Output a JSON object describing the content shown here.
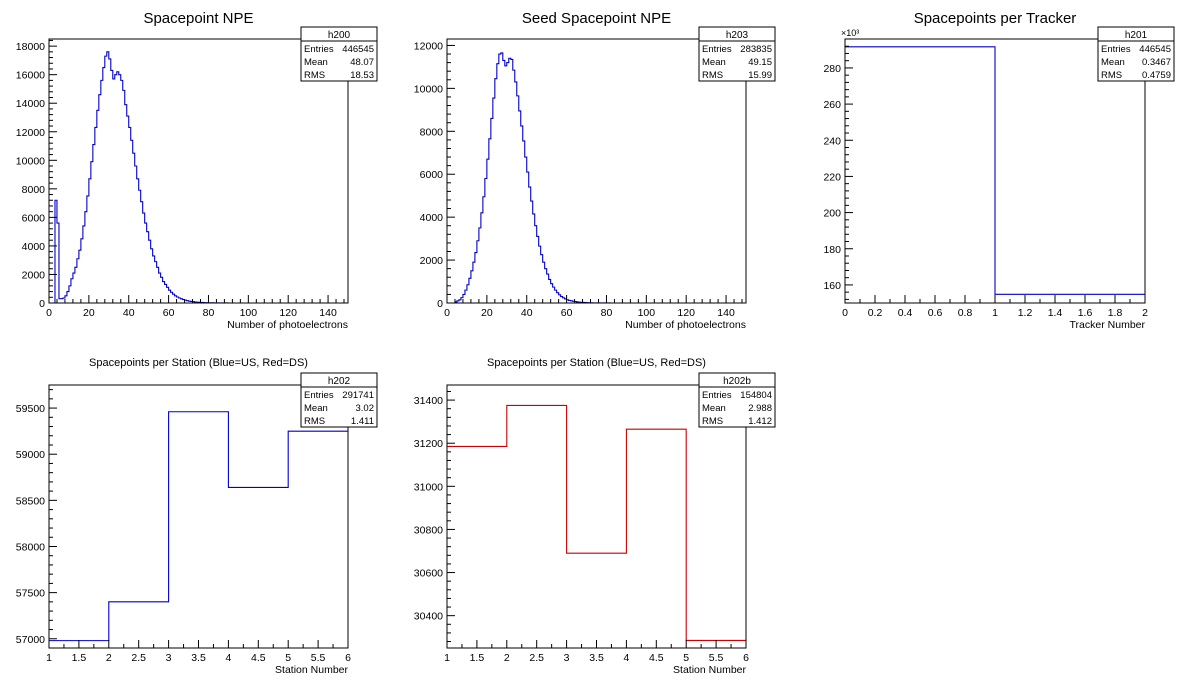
{
  "colors": {
    "blue": "#0000cc",
    "red": "#cc0000",
    "axis": "#000000"
  },
  "chart_data": [
    {
      "id": "h200",
      "type": "histogram",
      "title": "Spacepoint NPE",
      "title_style": "large",
      "xlabel": "Number of photoelectrons",
      "ylabel": "",
      "xlim": [
        0,
        150
      ],
      "ylim": [
        0,
        18500
      ],
      "x_ticks": [
        0,
        20,
        40,
        60,
        80,
        100,
        120,
        140
      ],
      "y_ticks": [
        0,
        2000,
        4000,
        6000,
        8000,
        10000,
        12000,
        14000,
        16000,
        18000
      ],
      "y_multiplier": "",
      "x_minor_per_major": 4,
      "y_minor_per_major": 4,
      "color": "blue",
      "stats": {
        "name": "h200",
        "rows": [
          {
            "label": "Entries",
            "value": "446545"
          },
          {
            "label": "Mean",
            "value": "48.07"
          },
          {
            "label": "RMS",
            "value": "18.53"
          }
        ]
      },
      "bin_width": 1,
      "x_start": 0,
      "values": [
        0,
        0,
        0,
        7200,
        5600,
        300,
        300,
        350,
        500,
        800,
        1200,
        1700,
        2100,
        2500,
        3100,
        3700,
        4500,
        5400,
        6400,
        7500,
        8700,
        9900,
        11100,
        12300,
        13500,
        14600,
        15600,
        16500,
        17300,
        17600,
        17100,
        16300,
        15700,
        16000,
        16200,
        16000,
        15600,
        14900,
        13900,
        13100,
        12300,
        11400,
        10500,
        9600,
        8700,
        7900,
        7100,
        6300,
        5600,
        5000,
        4400,
        3800,
        3300,
        2900,
        2500,
        2100,
        1800,
        1500,
        1300,
        1100,
        900,
        750,
        620,
        500,
        420,
        350,
        290,
        240,
        200,
        160,
        130,
        110,
        90,
        70,
        60,
        50,
        40,
        30,
        25,
        20,
        15,
        12,
        10,
        8,
        6,
        5,
        4,
        3,
        2,
        2,
        1,
        1,
        1,
        1,
        0,
        0,
        0,
        0,
        0,
        0,
        0,
        0,
        0,
        0,
        0,
        0,
        0,
        0,
        0,
        0,
        0,
        0,
        0,
        0,
        0,
        0,
        0,
        0,
        0,
        0,
        0,
        0,
        0,
        0,
        0,
        0,
        0,
        0,
        0,
        0,
        0,
        0,
        0,
        0,
        0,
        0,
        0,
        0,
        0,
        0,
        0,
        0,
        0,
        0,
        0,
        0,
        0,
        0,
        0,
        0
      ]
    },
    {
      "id": "h203",
      "type": "histogram",
      "title": "Seed Spacepoint NPE",
      "title_style": "large",
      "xlabel": "Number of photoelectrons",
      "ylabel": "",
      "xlim": [
        0,
        150
      ],
      "ylim": [
        0,
        12300
      ],
      "x_ticks": [
        0,
        20,
        40,
        60,
        80,
        100,
        120,
        140
      ],
      "y_ticks": [
        0,
        2000,
        4000,
        6000,
        8000,
        10000,
        12000
      ],
      "y_multiplier": "",
      "x_minor_per_major": 4,
      "y_minor_per_major": 4,
      "color": "blue",
      "stats": {
        "name": "h203",
        "rows": [
          {
            "label": "Entries",
            "value": "283835"
          },
          {
            "label": "Mean",
            "value": "49.15"
          },
          {
            "label": "RMS",
            "value": "15.99"
          }
        ]
      },
      "bin_width": 1,
      "x_start": 0,
      "values": [
        0,
        0,
        0,
        0,
        50,
        100,
        150,
        250,
        400,
        600,
        850,
        1150,
        1500,
        1900,
        2350,
        2900,
        3500,
        4200,
        4950,
        5800,
        6700,
        7650,
        8600,
        9550,
        10450,
        11150,
        11600,
        11650,
        11300,
        11050,
        11200,
        11400,
        11350,
        10850,
        10300,
        9650,
        8950,
        8250,
        7550,
        6800,
        6100,
        5400,
        4750,
        4150,
        3600,
        3100,
        2650,
        2250,
        1900,
        1600,
        1350,
        1100,
        900,
        740,
        600,
        480,
        380,
        300,
        240,
        190,
        150,
        120,
        100,
        80,
        65,
        50,
        40,
        30,
        24,
        18,
        14,
        10,
        8,
        6,
        5,
        4,
        3,
        2,
        2,
        1,
        1,
        1,
        0,
        0,
        0,
        0,
        0,
        0,
        0,
        0,
        0,
        0,
        0,
        0,
        0,
        0,
        0,
        0,
        0,
        0,
        0,
        0,
        0,
        0,
        0,
        0,
        0,
        0,
        0,
        0,
        0,
        0,
        0,
        0,
        0,
        0,
        0,
        0,
        0,
        0,
        0,
        0,
        0,
        0,
        0,
        0,
        0,
        0,
        0,
        0,
        0,
        0,
        0,
        0,
        0,
        0,
        0,
        0,
        0,
        0,
        0,
        0,
        0,
        0,
        0,
        0,
        0,
        0
      ]
    },
    {
      "id": "h201",
      "type": "histogram",
      "title": "Spacepoints per Tracker",
      "title_style": "large",
      "xlabel": "Tracker Number",
      "ylabel": "",
      "xlim": [
        0,
        2
      ],
      "ylim": [
        150,
        296
      ],
      "x_ticks": [
        0,
        0.2,
        0.4,
        0.6,
        0.8,
        1,
        1.2,
        1.4,
        1.6,
        1.8,
        2
      ],
      "y_ticks": [
        160,
        180,
        200,
        220,
        240,
        260,
        280
      ],
      "y_multiplier": "×10³",
      "x_minor_per_major": 1,
      "y_minor_per_major": 4,
      "color": "blue",
      "stats": {
        "name": "h201",
        "rows": [
          {
            "label": "Entries",
            "value": "446545"
          },
          {
            "label": "Mean",
            "value": "0.3467"
          },
          {
            "label": "RMS",
            "value": "0.4759"
          }
        ]
      },
      "bin_width": 1,
      "x_start": 0,
      "values": [
        291.7,
        154.8
      ]
    },
    {
      "id": "h202",
      "type": "histogram",
      "title": "Spacepoints per Station (Blue=US, Red=DS)",
      "title_style": "small",
      "xlabel": "Station Number",
      "ylabel": "",
      "xlim": [
        1,
        6
      ],
      "ylim": [
        56900,
        59750
      ],
      "x_ticks": [
        1,
        1.5,
        2,
        2.5,
        3,
        3.5,
        4,
        4.5,
        5,
        5.5,
        6
      ],
      "y_ticks": [
        57000,
        57500,
        58000,
        58500,
        59000,
        59500
      ],
      "y_multiplier": "",
      "x_minor_per_major": 1,
      "y_minor_per_major": 4,
      "color": "blue",
      "stats": {
        "name": "h202",
        "rows": [
          {
            "label": "Entries",
            "value": "291741"
          },
          {
            "label": "Mean",
            "value": "3.02"
          },
          {
            "label": "RMS",
            "value": "1.411"
          }
        ]
      },
      "bin_width": 1,
      "x_start": 1,
      "values": [
        56980,
        57400,
        59460,
        58640,
        59250
      ]
    },
    {
      "id": "h202b",
      "type": "histogram",
      "title": "Spacepoints per Station (Blue=US, Red=DS)",
      "title_style": "small",
      "xlabel": "Station Number",
      "ylabel": "",
      "xlim": [
        1,
        6
      ],
      "ylim": [
        30250,
        31470
      ],
      "x_ticks": [
        1,
        1.5,
        2,
        2.5,
        3,
        3.5,
        4,
        4.5,
        5,
        5.5,
        6
      ],
      "y_ticks": [
        30400,
        30600,
        30800,
        31000,
        31200,
        31400
      ],
      "y_multiplier": "",
      "x_minor_per_major": 1,
      "y_minor_per_major": 4,
      "color": "red",
      "stats": {
        "name": "h202b",
        "rows": [
          {
            "label": "Entries",
            "value": "154804"
          },
          {
            "label": "Mean",
            "value": "2.988"
          },
          {
            "label": "RMS",
            "value": "1.412"
          }
        ]
      },
      "bin_width": 1,
      "x_start": 1,
      "values": [
        31185,
        31375,
        30690,
        31265,
        30285
      ]
    }
  ]
}
